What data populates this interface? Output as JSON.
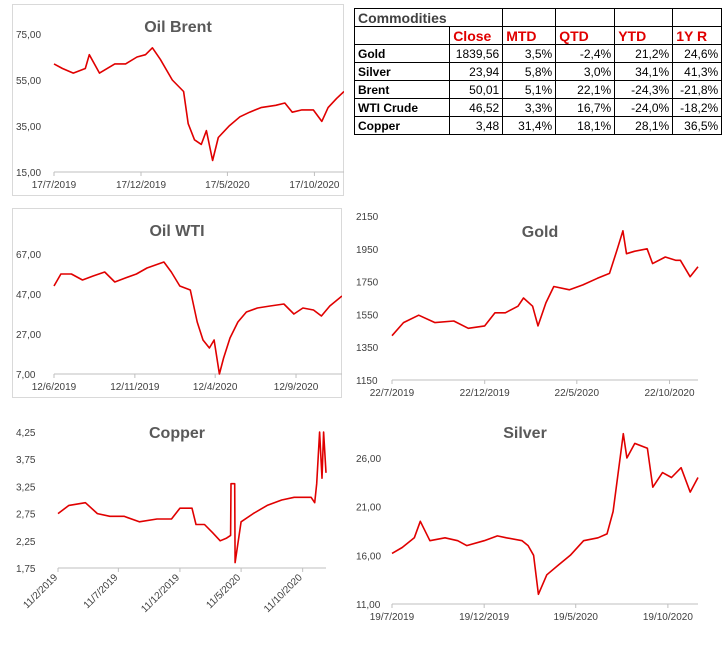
{
  "table": {
    "title": "Commodities",
    "columns": [
      "Close",
      "MTD",
      "QTD",
      "YTD",
      "1Y R"
    ],
    "rows": [
      {
        "name": "Gold",
        "values": [
          "1839,56",
          "3,5%",
          "-2,4%",
          "21,2%",
          "24,6%"
        ]
      },
      {
        "name": "Silver",
        "values": [
          "23,94",
          "5,8%",
          "3,0%",
          "34,1%",
          "41,3%"
        ]
      },
      {
        "name": "Brent",
        "values": [
          "50,01",
          "5,1%",
          "22,1%",
          "-24,3%",
          "-21,8%"
        ]
      },
      {
        "name": "WTI Crude",
        "values": [
          "46,52",
          "3,3%",
          "16,7%",
          "-24,0%",
          "-18,2%"
        ]
      },
      {
        "name": "Copper",
        "values": [
          "3,48",
          "31,4%",
          "18,1%",
          "28,1%",
          "36,5%"
        ]
      }
    ]
  },
  "line_color": "#e00000",
  "chart_data": [
    {
      "id": "brent",
      "type": "line",
      "title": "Oil Brent",
      "xlim": [
        "2019-07-17",
        "2020-12-08"
      ],
      "ylim": [
        15,
        75
      ],
      "yticks": [
        15,
        35,
        55,
        75
      ],
      "ytick_labels": [
        "15,00",
        "35,00",
        "55,00",
        "75,00"
      ],
      "xticks": [
        "2019-07-17",
        "2019-12-17",
        "2020-05-17",
        "2020-10-17"
      ],
      "xtick_labels": [
        "17/7/2019",
        "17/12/2019",
        "17/5/2020",
        "17/10/2020"
      ],
      "x": [
        "2019-07-17",
        "2019-08-01",
        "2019-08-20",
        "2019-09-10",
        "2019-09-17",
        "2019-10-05",
        "2019-11-01",
        "2019-11-20",
        "2019-12-10",
        "2019-12-25",
        "2020-01-06",
        "2020-01-20",
        "2020-02-10",
        "2020-03-01",
        "2020-03-09",
        "2020-03-20",
        "2020-04-01",
        "2020-04-10",
        "2020-04-21",
        "2020-05-01",
        "2020-05-20",
        "2020-06-08",
        "2020-06-25",
        "2020-07-15",
        "2020-08-10",
        "2020-08-26",
        "2020-09-08",
        "2020-09-25",
        "2020-10-15",
        "2020-10-30",
        "2020-11-10",
        "2020-11-25",
        "2020-12-08"
      ],
      "y": [
        62,
        60,
        58,
        60,
        66,
        58,
        62,
        62,
        65,
        66,
        69,
        64,
        55,
        50,
        36,
        29,
        27,
        33,
        20,
        30,
        35,
        39,
        41,
        43,
        44,
        45,
        41,
        42,
        42,
        37,
        43,
        47,
        50
      ]
    },
    {
      "id": "wti",
      "type": "line",
      "title": "Oil WTI",
      "xlim": [
        "2019-06-12",
        "2020-12-08"
      ],
      "ylim": [
        7,
        67
      ],
      "yticks": [
        7,
        27,
        47,
        67
      ],
      "ytick_labels": [
        "7,00",
        "27,00",
        "47,00",
        "67,00"
      ],
      "xticks": [
        "2019-06-12",
        "2019-11-12",
        "2020-04-12",
        "2020-09-12"
      ],
      "xtick_labels": [
        "12/6/2019",
        "12/11/2019",
        "12/4/2020",
        "12/9/2020"
      ],
      "x": [
        "2019-06-12",
        "2019-06-25",
        "2019-07-15",
        "2019-08-05",
        "2019-08-25",
        "2019-09-16",
        "2019-10-05",
        "2019-10-25",
        "2019-11-15",
        "2019-12-05",
        "2020-01-06",
        "2020-01-20",
        "2020-02-05",
        "2020-02-25",
        "2020-03-09",
        "2020-03-20",
        "2020-04-01",
        "2020-04-10",
        "2020-04-20",
        "2020-04-28",
        "2020-05-10",
        "2020-05-25",
        "2020-06-10",
        "2020-07-01",
        "2020-07-25",
        "2020-08-20",
        "2020-09-08",
        "2020-09-25",
        "2020-10-15",
        "2020-10-30",
        "2020-11-15",
        "2020-12-08"
      ],
      "y": [
        51,
        57,
        57,
        54,
        56,
        58,
        53,
        55,
        57,
        60,
        63,
        58,
        51,
        49,
        33,
        24,
        20,
        24,
        7,
        15,
        25,
        33,
        38,
        40,
        41,
        42,
        37,
        40,
        39,
        36,
        41,
        46
      ]
    },
    {
      "id": "gold",
      "type": "line",
      "title": "Gold",
      "xlim": [
        "2019-07-22",
        "2020-12-08"
      ],
      "ylim": [
        1150,
        2150
      ],
      "yticks": [
        1150,
        1350,
        1550,
        1750,
        1950,
        2150
      ],
      "ytick_labels": [
        "1150",
        "1350",
        "1550",
        "1750",
        "1950",
        "2150"
      ],
      "xticks": [
        "2019-07-22",
        "2019-12-22",
        "2020-05-22",
        "2020-10-22"
      ],
      "xtick_labels": [
        "22/7/2019",
        "22/12/2019",
        "22/5/2020",
        "22/10/2020"
      ],
      "x": [
        "2019-07-22",
        "2019-08-10",
        "2019-09-04",
        "2019-10-01",
        "2019-11-01",
        "2019-11-25",
        "2019-12-22",
        "2020-01-08",
        "2020-01-25",
        "2020-02-15",
        "2020-02-24",
        "2020-03-10",
        "2020-03-19",
        "2020-04-01",
        "2020-04-14",
        "2020-05-10",
        "2020-06-01",
        "2020-06-25",
        "2020-07-15",
        "2020-07-28",
        "2020-08-06",
        "2020-08-12",
        "2020-08-25",
        "2020-09-15",
        "2020-09-24",
        "2020-10-15",
        "2020-11-01",
        "2020-11-09",
        "2020-11-25",
        "2020-12-08"
      ],
      "y": [
        1420,
        1500,
        1545,
        1500,
        1510,
        1465,
        1480,
        1560,
        1560,
        1600,
        1650,
        1600,
        1480,
        1620,
        1720,
        1700,
        1730,
        1770,
        1800,
        1950,
        2060,
        1920,
        1935,
        1950,
        1860,
        1900,
        1880,
        1880,
        1780,
        1840
      ]
    },
    {
      "id": "copper",
      "type": "line",
      "title": "Copper",
      "xlim": [
        "2019-02-11",
        "2020-12-08"
      ],
      "ylim": [
        1.75,
        4.25
      ],
      "yticks": [
        1.75,
        2.25,
        2.75,
        3.25,
        3.75,
        4.25
      ],
      "ytick_labels": [
        "1,75",
        "2,25",
        "2,75",
        "3,25",
        "3,75",
        "4,25"
      ],
      "xticks": [
        "2019-02-11",
        "2019-07-11",
        "2019-12-11",
        "2020-05-11",
        "2020-10-11"
      ],
      "xtick_labels": [
        "11/2/2019",
        "11/7/2019",
        "11/12/2019",
        "11/5/2020",
        "11/10/2020"
      ],
      "x": [
        "2019-02-11",
        "2019-03-10",
        "2019-04-20",
        "2019-05-20",
        "2019-06-20",
        "2019-07-25",
        "2019-09-01",
        "2019-10-15",
        "2019-11-20",
        "2019-12-11",
        "2020-01-10",
        "2020-01-20",
        "2020-02-10",
        "2020-03-01",
        "2020-03-20",
        "2020-04-05",
        "2020-04-15",
        "2020-04-16",
        "2020-04-25",
        "2020-04-26",
        "2020-05-11",
        "2020-06-10",
        "2020-07-15",
        "2020-08-20",
        "2020-09-20",
        "2020-10-15",
        "2020-11-01",
        "2020-11-10",
        "2020-11-15",
        "2020-11-22",
        "2020-11-28",
        "2020-12-02",
        "2020-12-08"
      ],
      "y": [
        2.75,
        2.9,
        2.95,
        2.75,
        2.7,
        2.7,
        2.6,
        2.65,
        2.65,
        2.85,
        2.85,
        2.55,
        2.55,
        2.4,
        2.25,
        2.3,
        2.35,
        3.3,
        3.3,
        1.85,
        2.6,
        2.75,
        2.9,
        3.0,
        3.05,
        3.05,
        3.05,
        2.95,
        3.3,
        4.25,
        3.4,
        4.25,
        3.5
      ]
    },
    {
      "id": "silver",
      "type": "line",
      "title": "Silver",
      "xlim": [
        "2019-07-19",
        "2020-12-08"
      ],
      "ylim": [
        11,
        26
      ],
      "yticks": [
        11,
        16,
        21,
        26
      ],
      "ytick_labels": [
        "11,00",
        "16,00",
        "21,00",
        "26,00"
      ],
      "xticks": [
        "2019-07-19",
        "2019-12-19",
        "2020-05-19",
        "2020-10-19"
      ],
      "xtick_labels": [
        "19/7/2019",
        "19/12/2019",
        "19/5/2020",
        "19/10/2020"
      ],
      "x": [
        "2019-07-19",
        "2019-08-05",
        "2019-08-25",
        "2019-09-04",
        "2019-09-20",
        "2019-10-15",
        "2019-11-05",
        "2019-11-20",
        "2019-12-19",
        "2020-01-10",
        "2020-01-25",
        "2020-02-20",
        "2020-03-01",
        "2020-03-10",
        "2020-03-18",
        "2020-04-01",
        "2020-04-20",
        "2020-05-10",
        "2020-06-01",
        "2020-06-25",
        "2020-07-10",
        "2020-07-20",
        "2020-08-06",
        "2020-08-12",
        "2020-08-25",
        "2020-09-15",
        "2020-09-24",
        "2020-10-10",
        "2020-10-25",
        "2020-11-10",
        "2020-11-25",
        "2020-12-08"
      ],
      "y": [
        16.2,
        16.8,
        17.8,
        19.5,
        17.5,
        17.8,
        17.5,
        17.0,
        17.5,
        18.0,
        17.8,
        17.5,
        17.0,
        16.0,
        12.0,
        14.0,
        15.0,
        16.0,
        17.5,
        17.8,
        18.2,
        20.5,
        28.5,
        26.0,
        27.5,
        27.0,
        23.0,
        24.5,
        24.0,
        25.0,
        22.5,
        24.0
      ]
    }
  ]
}
